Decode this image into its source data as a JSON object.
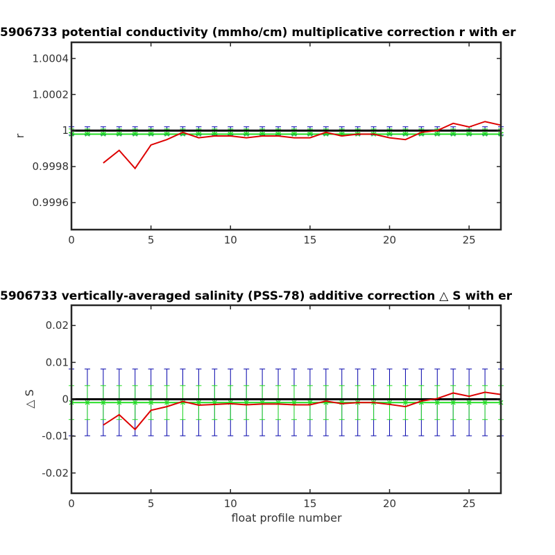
{
  "chart_data": [
    {
      "type": "line",
      "title": "5906733 potential conductivity (mmho/cm) multiplicative correction r with er",
      "xlabel": "",
      "ylabel": "r",
      "xlim": [
        0,
        27
      ],
      "ylim": [
        0.99945,
        1.00049
      ],
      "xticks": [
        0,
        5,
        10,
        15,
        20,
        25
      ],
      "xtick_labels": [
        "0",
        "5",
        "10",
        "15",
        "20",
        "25"
      ],
      "yticks": [
        0.9996,
        0.9998,
        1.0,
        1.0002,
        1.0004
      ],
      "ytick_labels": [
        "0.9996",
        "0.9998",
        "1",
        "1.0002",
        "1.0004"
      ],
      "grid": false,
      "colors": {
        "reference": "#000000",
        "correction": "#dd0000",
        "fit": "#22dd22",
        "outer_error": "#0000aa",
        "inner_error": "#22dd22"
      },
      "series": [
        {
          "role": "reference",
          "x": [
            0,
            27
          ],
          "values": [
            1.0,
            1.0
          ]
        },
        {
          "role": "correction",
          "x": [
            2,
            3,
            4,
            5,
            6,
            7,
            8,
            9,
            10,
            11,
            12,
            13,
            14,
            15,
            16,
            17,
            18,
            19,
            20,
            21,
            22,
            23,
            24,
            25,
            26,
            27
          ],
          "values": [
            0.99982,
            0.99989,
            0.99979,
            0.99992,
            0.99995,
            0.99999,
            0.99996,
            0.99997,
            0.99997,
            0.99996,
            0.99997,
            0.99997,
            0.99996,
            0.99996,
            0.99999,
            0.99997,
            0.99998,
            0.99998,
            0.99996,
            0.99995,
            0.99999,
            1.0,
            1.00004,
            1.00002,
            1.00005,
            1.00003
          ]
        },
        {
          "role": "fit",
          "x": [
            0,
            1,
            2,
            3,
            4,
            5,
            6,
            7,
            8,
            9,
            10,
            11,
            12,
            13,
            14,
            15,
            16,
            17,
            18,
            19,
            20,
            21,
            22,
            23,
            24,
            25,
            26,
            27
          ],
          "values": [
            0.99998,
            0.99998,
            0.99998,
            0.99998,
            0.99998,
            0.99998,
            0.99998,
            0.99998,
            0.99998,
            0.99998,
            0.99998,
            0.99998,
            0.99998,
            0.99998,
            0.99998,
            0.99998,
            0.99998,
            0.99998,
            0.99998,
            0.99998,
            0.99998,
            0.99998,
            0.99998,
            0.99998,
            0.99998,
            0.99998,
            0.99998,
            0.99998
          ]
        }
      ],
      "errorbars": {
        "outer": {
          "low": 0.999975,
          "high": 1.000021
        },
        "inner": {
          "low": 0.999987,
          "high": 1.000009
        }
      }
    },
    {
      "type": "line",
      "title": "5906733 vertically-averaged salinity (PSS-78) additive correction △ S with er",
      "xlabel": "float profile number",
      "ylabel": "△ S",
      "xlim": [
        0,
        27
      ],
      "ylim": [
        -0.0255,
        0.0255
      ],
      "xticks": [
        0,
        5,
        10,
        15,
        20,
        25
      ],
      "xtick_labels": [
        "0",
        "5",
        "10",
        "15",
        "20",
        "25"
      ],
      "yticks": [
        -0.02,
        -0.01,
        0,
        0.01,
        0.02
      ],
      "ytick_labels": [
        "-0.02",
        "-0.01",
        "0",
        "0.01",
        "0.02"
      ],
      "grid": false,
      "colors": {
        "reference": "#000000",
        "correction": "#dd0000",
        "fit": "#22dd22",
        "outer_error": "#0000aa",
        "inner_error": "#22dd22"
      },
      "series": [
        {
          "role": "reference",
          "x": [
            0,
            27
          ],
          "values": [
            0,
            0
          ]
        },
        {
          "role": "correction",
          "x": [
            2,
            3,
            4,
            5,
            6,
            7,
            8,
            9,
            10,
            11,
            12,
            13,
            14,
            15,
            16,
            17,
            18,
            19,
            20,
            21,
            22,
            23,
            24,
            25,
            26,
            27
          ],
          "values": [
            -0.007,
            -0.0042,
            -0.0082,
            -0.003,
            -0.002,
            -0.0006,
            -0.0016,
            -0.0014,
            -0.0012,
            -0.0015,
            -0.0013,
            -0.0013,
            -0.0015,
            -0.0015,
            -0.0005,
            -0.0012,
            -0.0009,
            -0.0009,
            -0.0014,
            -0.002,
            -0.0005,
            0.0002,
            0.0017,
            0.0008,
            0.0019,
            0.0013
          ]
        },
        {
          "role": "fit",
          "x": [
            0,
            1,
            2,
            3,
            4,
            5,
            6,
            7,
            8,
            9,
            10,
            11,
            12,
            13,
            14,
            15,
            16,
            17,
            18,
            19,
            20,
            21,
            22,
            23,
            24,
            25,
            26,
            27
          ],
          "values": [
            -0.0009,
            -0.0009,
            -0.0009,
            -0.0009,
            -0.0009,
            -0.0009,
            -0.0009,
            -0.0009,
            -0.0009,
            -0.0009,
            -0.0009,
            -0.0009,
            -0.0009,
            -0.0009,
            -0.0009,
            -0.0009,
            -0.0009,
            -0.0009,
            -0.0009,
            -0.0009,
            -0.0009,
            -0.0009,
            -0.0009,
            -0.0009,
            -0.0009,
            -0.0009,
            -0.0009,
            -0.0009
          ]
        }
      ],
      "errorbars": {
        "outer": {
          "low": -0.0099,
          "high": 0.0082
        },
        "inner": {
          "low": -0.0055,
          "high": 0.0037
        }
      }
    }
  ]
}
